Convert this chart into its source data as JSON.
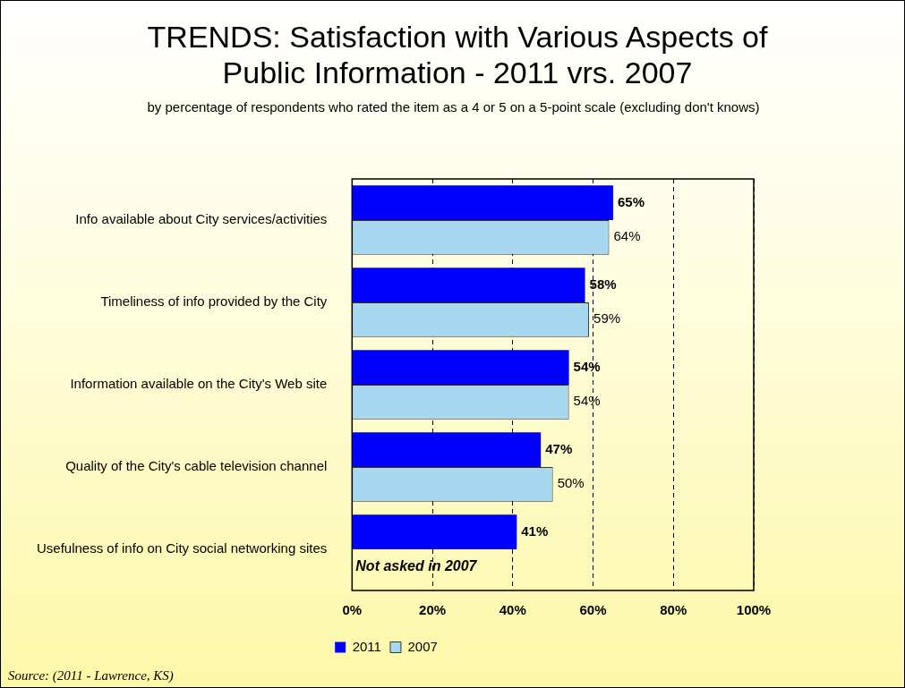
{
  "chart_data": {
    "type": "bar",
    "orientation": "horizontal",
    "title": "TRENDS: Satisfaction with Various Aspects of Public Information - 2011 vrs. 2007",
    "subtitle": "by percentage of respondents who rated the item as a 4 or 5 on a 5-point scale (excluding don't knows)",
    "categories": [
      "Info available about City services/activities",
      "Timeliness of info provided by the City",
      "Information available on the City's Web site",
      "Quality of the City's cable television channel",
      "Usefulness of info on City social networking sites"
    ],
    "series": [
      {
        "name": "2011",
        "color": "#0000ff",
        "values": [
          65,
          58,
          54,
          47,
          41
        ],
        "value_labels": [
          "65%",
          "58%",
          "54%",
          "47%",
          "41%"
        ]
      },
      {
        "name": "2007",
        "color": "#a8d8f0",
        "values": [
          64,
          59,
          54,
          50,
          null
        ],
        "value_labels": [
          "64%",
          "59%",
          "54%",
          "50%",
          null
        ]
      }
    ],
    "xlim": [
      0,
      100
    ],
    "xticks": [
      {
        "value": 0,
        "label": "0%"
      },
      {
        "value": 20,
        "label": "20%"
      },
      {
        "value": 40,
        "label": "40%"
      },
      {
        "value": 60,
        "label": "60%"
      },
      {
        "value": 80,
        "label": "80%"
      },
      {
        "value": 100,
        "label": "100%"
      }
    ],
    "grid": "x",
    "line_style": "dashed",
    "legend": "bottom",
    "annotations": [
      {
        "text": "Not asked in 2007",
        "x": 0,
        "y": "Usefulness of info on City social networking sites"
      },
      "Source: (2011 - Lawrence, KS)"
    ]
  }
}
